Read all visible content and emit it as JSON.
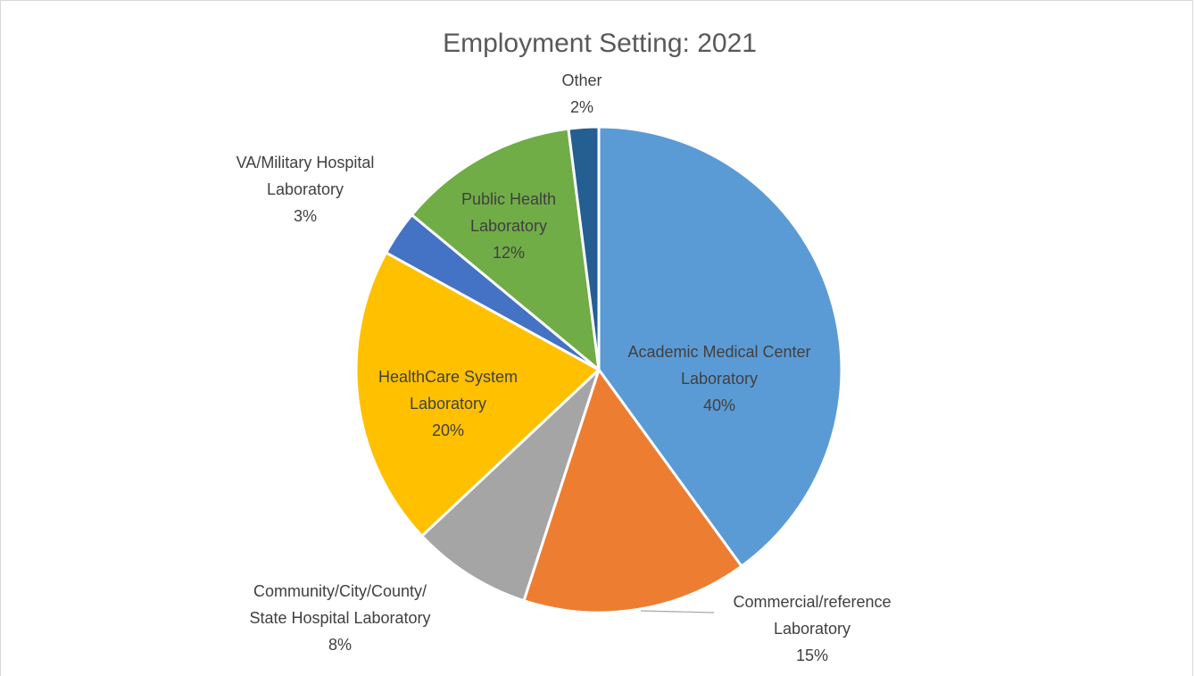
{
  "chart_data": {
    "type": "pie",
    "title": "Employment Setting: 2021",
    "slices": [
      {
        "name": "Academic Medical Center Laboratory",
        "label_lines": [
          "Academic Medical Center",
          "Laboratory"
        ],
        "value": 40,
        "value_label": "40%",
        "color": "#5b9bd5"
      },
      {
        "name": "Commercial/reference Laboratory",
        "label_lines": [
          "Commercial/reference",
          "Laboratory"
        ],
        "value": 15,
        "value_label": "15%",
        "color": "#ed7d31"
      },
      {
        "name": "Community/City/County/ State Hospital Laboratory",
        "label_lines": [
          "Community/City/County/",
          "State Hospital Laboratory"
        ],
        "value": 8,
        "value_label": "8%",
        "color": "#a5a5a5"
      },
      {
        "name": "HealthCare System Laboratory",
        "label_lines": [
          "HealthCare System",
          "Laboratory"
        ],
        "value": 20,
        "value_label": "20%",
        "color": "#ffc000"
      },
      {
        "name": "VA/Military Hospital Laboratory",
        "label_lines": [
          "VA/Military Hospital",
          "Laboratory"
        ],
        "value": 3,
        "value_label": "3%",
        "color": "#4472c4"
      },
      {
        "name": "Public Health Laboratory",
        "label_lines": [
          "Public Health",
          "Laboratory"
        ],
        "value": 12,
        "value_label": "12%",
        "color": "#70ad47"
      },
      {
        "name": "Other",
        "label_lines": [
          "Other"
        ],
        "value": 2,
        "value_label": "2%",
        "color": "#255e91"
      }
    ],
    "label_color": "#404040"
  }
}
